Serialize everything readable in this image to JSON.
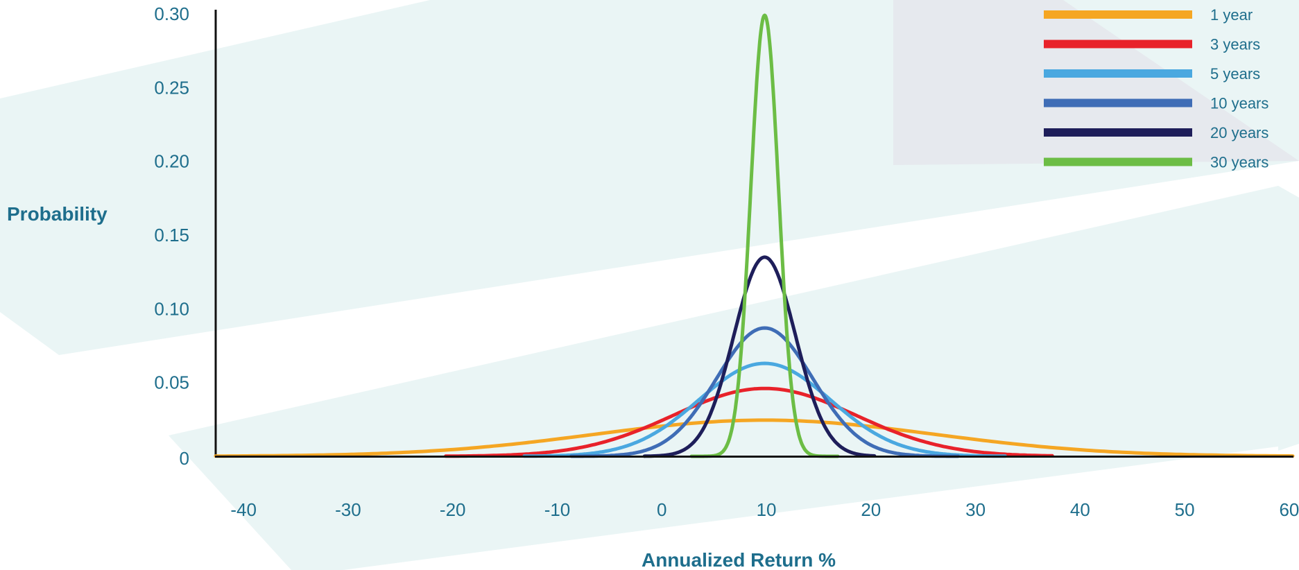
{
  "chart_data": {
    "type": "line",
    "xlabel": "Annualized Return %",
    "ylabel": "Probability",
    "xlim": [
      -42,
      61
    ],
    "ylim": [
      0,
      0.3
    ],
    "x_ticks": [
      -40,
      -30,
      -20,
      -10,
      0,
      10,
      20,
      30,
      40,
      50,
      60
    ],
    "x_tick_labels": [
      "-40",
      "-30",
      "-20",
      "-10",
      "0",
      "10",
      "20",
      "30",
      "40",
      "50",
      "60"
    ],
    "y_ticks": [
      0,
      0.05,
      0.1,
      0.15,
      0.2,
      0.25,
      0.3
    ],
    "y_tick_labels": [
      "0",
      "0.05",
      "0.10",
      "0.15",
      "0.20",
      "0.25",
      "0.30"
    ],
    "legend_position": "top-right",
    "grid": false,
    "series": [
      {
        "name": "1 year",
        "color": "#f5a623",
        "mean": 10.5,
        "peak": 0.0245,
        "sd": 16.3,
        "x_range": [
          -42,
          61
        ]
      },
      {
        "name": "3 years",
        "color": "#e8222a",
        "mean": 10.5,
        "peak": 0.046,
        "sd": 8.7,
        "x_range": [
          -20,
          38
        ]
      },
      {
        "name": "5 years",
        "color": "#4aa8e0",
        "mean": 10.5,
        "peak": 0.063,
        "sd": 6.3,
        "x_range": [
          -12.5,
          33.5
        ]
      },
      {
        "name": "10 years",
        "color": "#3f6db6",
        "mean": 10.5,
        "peak": 0.087,
        "sd": 4.6,
        "x_range": [
          -8,
          29
        ]
      },
      {
        "name": "20 years",
        "color": "#1e1e5a",
        "mean": 10.5,
        "peak": 0.135,
        "sd": 2.95,
        "x_range": [
          -1,
          21
        ]
      },
      {
        "name": "30 years",
        "color": "#6cbd45",
        "mean": 10.5,
        "peak": 0.299,
        "sd": 1.33,
        "x_range": [
          3.5,
          17.5
        ]
      }
    ],
    "background_colors": {
      "panel": "#eaf5f5",
      "panel_grey": "#e6e9ee"
    }
  }
}
